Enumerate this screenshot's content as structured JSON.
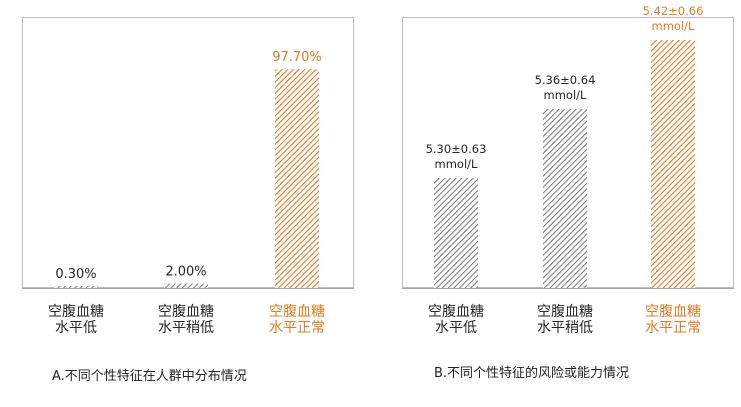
{
  "chart_data": [
    {
      "type": "bar",
      "categories": [
        [
          "空腹血糖",
          "水平低"
        ],
        [
          "空腹血糖",
          "水平稍低"
        ],
        [
          "空腹血糖",
          "水平正常"
        ]
      ],
      "values": [
        0.3,
        2.0,
        97.7
      ],
      "data_labels": [
        [
          "0.30%"
        ],
        [
          "2.00%"
        ],
        [
          "97.70%"
        ]
      ],
      "highlight_index": 2,
      "ylim": [
        0,
        100
      ],
      "grid": false,
      "colors": {
        "normal": "#7f7f7f",
        "highlight": "#e07b24"
      },
      "caption": "A.不同个性特征在人群中分布情况"
    },
    {
      "type": "bar",
      "categories": [
        [
          "空腹血糖",
          "水平低"
        ],
        [
          "空腹血糖",
          "水平稍低"
        ],
        [
          "空腹血糖",
          "水平正常"
        ]
      ],
      "values": [
        5.3,
        5.36,
        5.42
      ],
      "errors": [
        0.63,
        0.64,
        0.66
      ],
      "data_labels": [
        [
          "5.30±0.63",
          "mmol/L"
        ],
        [
          "5.36±0.64",
          "mmol/L"
        ],
        [
          "5.42±0.66",
          "mmol/L"
        ]
      ],
      "highlight_index": 2,
      "grid": false,
      "colors": {
        "normal": "#7f7f7f",
        "highlight": "#e07b24"
      },
      "caption": "B.不同个性特征的风险或能力情况"
    }
  ]
}
